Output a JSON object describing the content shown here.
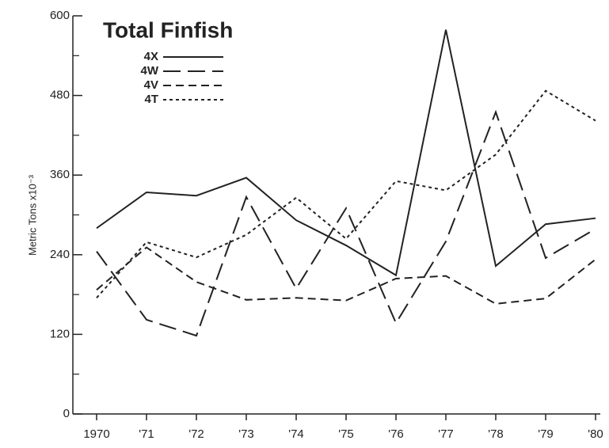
{
  "chart_data": {
    "type": "line",
    "title": "Total Finfish",
    "y_label": "Metric Tons x10⁻³",
    "categories": [
      "1970",
      "'71",
      "'72",
      "'73",
      "'74",
      "'75",
      "'76",
      "'77",
      "'78",
      "'79",
      "'80"
    ],
    "series": [
      {
        "name": "4X",
        "color": "#222",
        "dash": "none",
        "values": [
          280,
          334,
          329,
          356,
          292,
          254,
          209,
          579,
          223,
          286,
          295
        ]
      },
      {
        "name": "4W",
        "color": "#222",
        "dash": "22 9",
        "values": [
          245,
          142,
          118,
          327,
          189,
          310,
          137,
          260,
          455,
          235,
          279
        ]
      },
      {
        "name": "4V",
        "color": "#222",
        "dash": "10 6",
        "values": [
          187,
          251,
          199,
          172,
          175,
          171,
          204,
          208,
          166,
          174,
          233
        ]
      },
      {
        "name": "4T",
        "color": "#222",
        "dash": "4 4",
        "values": [
          175,
          259,
          236,
          270,
          326,
          264,
          351,
          337,
          391,
          487,
          442
        ]
      }
    ],
    "ylim": [
      0,
      600
    ],
    "yticks": [
      0,
      120,
      240,
      360,
      480,
      600
    ],
    "yminorticks": [
      60,
      180,
      300,
      420,
      540
    ],
    "grid": false
  }
}
